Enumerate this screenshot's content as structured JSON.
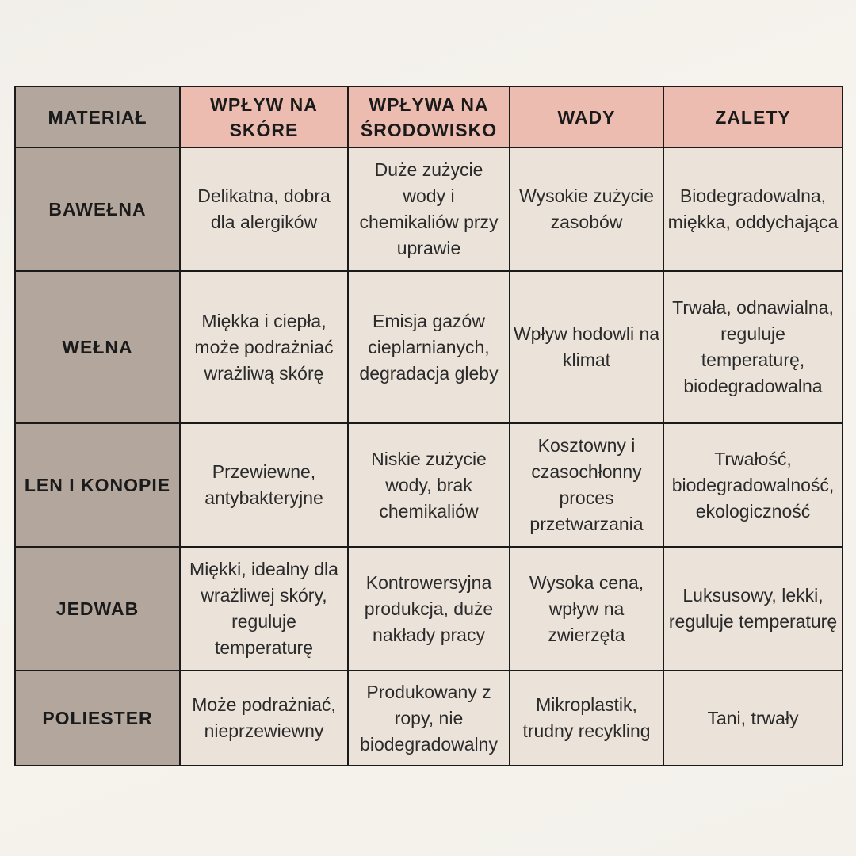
{
  "table": {
    "header": [
      "MATERIAŁ",
      "WPŁYW NA SKÓRE",
      "WPŁYWA NA ŚRODOWISKO",
      "WADY",
      "ZALETY"
    ],
    "rows": [
      [
        "BAWEŁNA",
        "Delikatna, dobra dla alergików",
        "Duże zużycie wody i chemikaliów przy uprawie",
        "Wysokie zużycie zasobów",
        "Biodegradowalna, miękka, oddychająca"
      ],
      [
        "WEŁNA",
        "Miękka i ciepła, może podrażniać wrażliwą skórę",
        "Emisja gazów cieplarnianych, degradacja gleby",
        "Wpływ hodowli na klimat",
        "Trwała, odnawialna, reguluje temperaturę, biodegradowalna"
      ],
      [
        "LEN I KONOPIE",
        "Przewiewne, antybakteryjne",
        "Niskie zużycie wody, brak chemikaliów",
        "Kosztowny i czasochłonny proces przetwarzania",
        "Trwałość, biodegradowalność, ekologiczność"
      ],
      [
        "JEDWAB",
        "Miękki, idealny dla wrażliwej skóry, reguluje temperaturę",
        "Kontrowersyjna produkcja, duże nakłady pracy",
        "Wysoka cena, wpływ na zwierzęta",
        "Luksusowy, lekki, reguluje temperaturę"
      ],
      [
        "POLIESTER",
        "Może podrażniać, nieprzewiewny",
        "Produkowany z ropy, nie biodegradowalny",
        "Mikroplastik, trudny recykling",
        "Tani, trwały"
      ]
    ]
  }
}
